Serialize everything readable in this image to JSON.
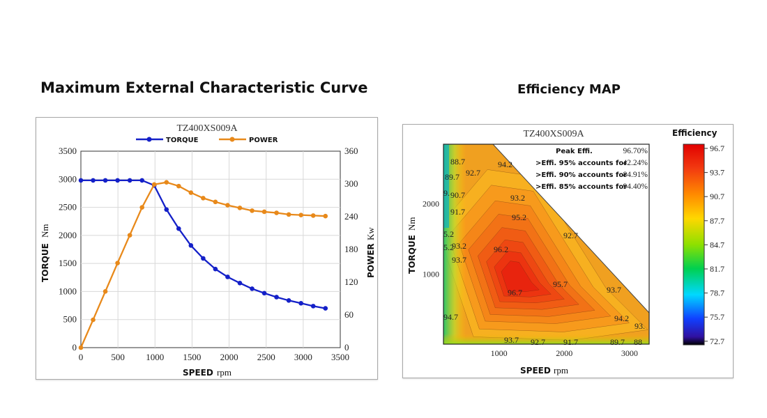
{
  "headings": {
    "left": "Maximum External Characteristic Curve",
    "right": "Efficiency MAP"
  },
  "chart_data": [
    {
      "type": "line",
      "title": "TZ400XS009A",
      "xlabel": "SPEED rpm",
      "xlabel_main": "SPEED",
      "xlabel_unit": "rpm",
      "ylabel_left_main": "TORQUE",
      "ylabel_left_unit": "Nm",
      "ylabel_right_main": "POWER",
      "ylabel_right_unit": "Kw",
      "xlim": [
        0,
        3500
      ],
      "ylim_left": [
        0,
        3500
      ],
      "ylim_right": [
        0,
        360
      ],
      "x_ticks": [
        0,
        500,
        1000,
        1500,
        2000,
        2500,
        3000,
        3500
      ],
      "y_left_ticks": [
        0,
        500,
        1000,
        1500,
        2000,
        2500,
        3000,
        3500
      ],
      "y_right_ticks": [
        0,
        60,
        120,
        180,
        240,
        300,
        360
      ],
      "grid": true,
      "legend_position": "top-center",
      "colors": {
        "torque": "#1420c8",
        "power": "#e8891a"
      },
      "series": [
        {
          "name": "TORQUE",
          "axis": "left",
          "x": [
            0,
            165,
            330,
            495,
            660,
            825,
            990,
            1155,
            1320,
            1485,
            1650,
            1815,
            1980,
            2145,
            2310,
            2475,
            2640,
            2805,
            2970,
            3135,
            3300
          ],
          "y": [
            2980,
            2980,
            2980,
            2980,
            2980,
            2980,
            2890,
            2460,
            2120,
            1820,
            1590,
            1400,
            1260,
            1150,
            1050,
            970,
            900,
            840,
            790,
            740,
            700
          ]
        },
        {
          "name": "POWER",
          "axis": "right",
          "x": [
            0,
            165,
            330,
            495,
            660,
            825,
            990,
            1155,
            1320,
            1485,
            1650,
            1815,
            1980,
            2145,
            2310,
            2475,
            2640,
            2805,
            2970,
            3135,
            3300
          ],
          "y": [
            0,
            51,
            103,
            155,
            206,
            257,
            299,
            303,
            296,
            284,
            274,
            267,
            261,
            256,
            251,
            249,
            247,
            244,
            243,
            242,
            241
          ]
        }
      ]
    },
    {
      "type": "heatmap",
      "title": "TZ400XS009A",
      "xlabel": "SPEED rpm",
      "xlabel_main": "SPEED",
      "xlabel_unit": "rpm",
      "ylabel_main": "TORQUE",
      "ylabel_unit": "Nm",
      "x_ticks": [
        1000,
        2000,
        3000
      ],
      "y_ticks": [
        1000,
        2000
      ],
      "peak_rpm": 1250,
      "peak_torque": 900,
      "colorbar_title": "Efficiency",
      "colorbar_ticks": [
        "96.7",
        "93.7",
        "90.7",
        "87.7",
        "84.7",
        "81.7",
        "78.7",
        "75.7",
        "72.7"
      ],
      "stats": [
        {
          "label": "Peak Effi.",
          "value": "96.70%"
        },
        {
          "label": ">Effi. 95% accounts for",
          "value": "42.24%"
        },
        {
          "label": ">Effi. 90% accounts for",
          "value": "84.91%"
        },
        {
          "label": ">Effi. 85% accounts for",
          "value": "94.40%"
        }
      ],
      "contour_labels": [
        "88.7",
        "92.7",
        "94.2",
        "89.7",
        "90.7",
        "91.7",
        "93.2",
        "95.2",
        "92.7",
        "96.2",
        "93.2",
        "93.7",
        "96.7",
        "95.7",
        "93.7",
        "94.7",
        "94.2",
        "93.",
        "93.7",
        "92.7",
        "91.7",
        "89.7",
        "88",
        "5.2",
        "5.2",
        "9."
      ]
    }
  ]
}
